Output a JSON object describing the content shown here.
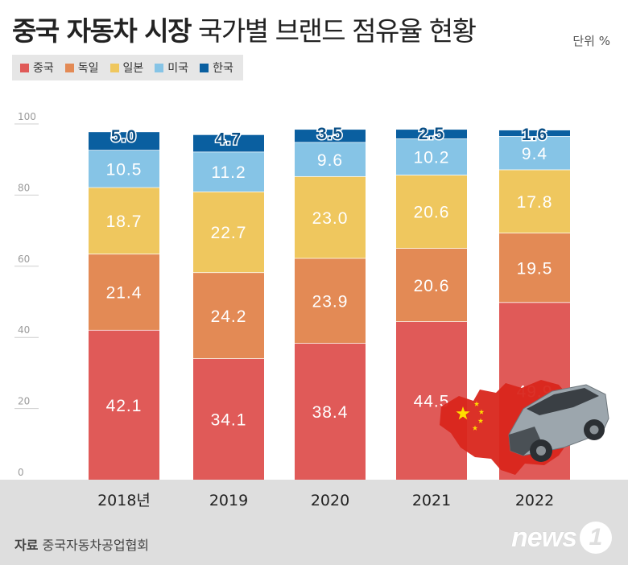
{
  "header": {
    "title_bold": "중국 자동차 시장",
    "title_light": "국가별 브랜드 점유율 현황",
    "unit": "단위 %"
  },
  "legend": [
    {
      "label": "중국",
      "color": "#e05a58"
    },
    {
      "label": "독일",
      "color": "#e38a55"
    },
    {
      "label": "일본",
      "color": "#efc75e"
    },
    {
      "label": "미국",
      "color": "#86c4e6"
    },
    {
      "label": "한국",
      "color": "#0a5fa0"
    }
  ],
  "chart_data": {
    "type": "bar",
    "stacked": true,
    "categories": [
      "2018년",
      "2019",
      "2020",
      "2021",
      "2022"
    ],
    "series": [
      {
        "name": "중국",
        "values": [
          42.1,
          34.1,
          38.4,
          44.5,
          49.9
        ]
      },
      {
        "name": "독일",
        "values": [
          21.4,
          24.2,
          23.9,
          20.6,
          19.5
        ]
      },
      {
        "name": "일본",
        "values": [
          18.7,
          22.7,
          23.0,
          20.6,
          17.8
        ]
      },
      {
        "name": "미국",
        "values": [
          10.5,
          11.2,
          9.6,
          10.2,
          9.4
        ]
      },
      {
        "name": "한국",
        "values": [
          5.0,
          4.7,
          3.5,
          2.5,
          1.6
        ]
      }
    ],
    "yticks": [
      0,
      20,
      40,
      60,
      80,
      100
    ],
    "ylim": [
      0,
      100
    ],
    "grid": true
  },
  "footer": {
    "source_label": "자료",
    "source_text": "중국자동차공업협회",
    "logo_text": "news",
    "logo_num": "1"
  }
}
